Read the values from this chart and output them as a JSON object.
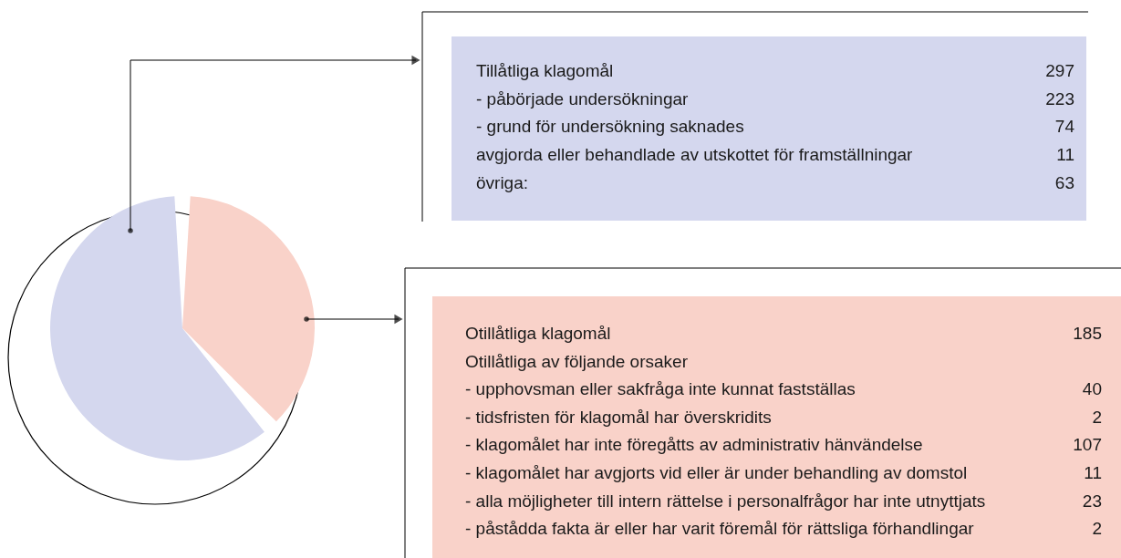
{
  "chart_data": {
    "type": "pie",
    "categories": [
      null,
      null
    ],
    "values": [
      61.6,
      38.4
    ],
    "colors": [
      "#d4d7ee",
      "#f9d2c9"
    ],
    "annotations": [
      "Tillåtliga klagomål",
      "297",
      "- påbörjade undersökningar",
      "223",
      "- grund för undersökning saknades",
      "74",
      "avgjorda eller behandlade av utskottet för framställningar",
      "11",
      "övriga:",
      "63",
      "Otillåtliga klagomål",
      "185",
      "Otillåtliga av följande orsaker",
      "- upphovsman eller sakfråga inte kunnat fastställas",
      "40",
      "- tidsfristen för klagomål har överskridits",
      "2",
      "- klagomålet har inte föregåtts av administrativ hänvändelse",
      "107",
      "- klagomålet har avgjorts vid eller är under behandling av domstol",
      "11",
      "- alla möjligheter till intern rättelse i personalfrågor har inte utnyttjats",
      "23",
      "- påstådda fakta är eller har varit föremål för rättsliga förhandlingar",
      "2"
    ]
  }
}
